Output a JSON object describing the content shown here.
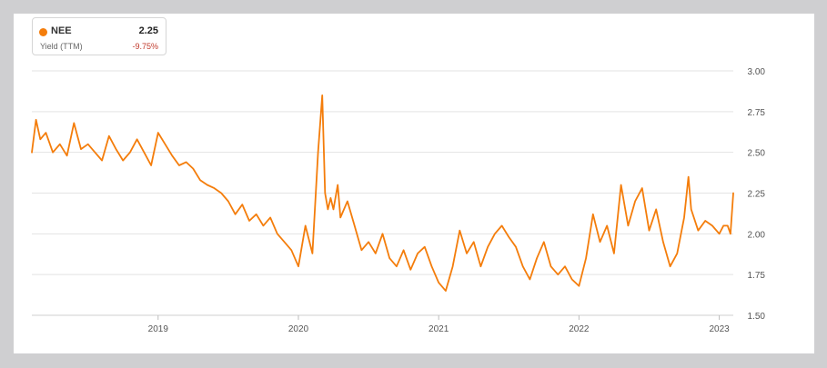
{
  "legend": {
    "ticker": "NEE",
    "value": "2.25",
    "metric": "Yield (TTM)",
    "change": "-9.75%"
  },
  "colors": {
    "series": "#f47d0b",
    "grid": "#e3e3e3",
    "negative": "#c0392b"
  },
  "chart_data": {
    "type": "line",
    "xlabel": "",
    "ylabel": "",
    "ylim": [
      1.5,
      3.0
    ],
    "xlim": [
      2018.1,
      2023.1
    ],
    "yticks": [
      "3.00",
      "2.75",
      "2.50",
      "2.25",
      "2.00",
      "1.75",
      "1.50"
    ],
    "xticks": [
      "2019",
      "2020",
      "2021",
      "2022",
      "2023"
    ],
    "grid": true,
    "legend_position": "top-left",
    "series": [
      {
        "name": "NEE",
        "x": [
          2018.1,
          2018.13,
          2018.16,
          2018.2,
          2018.25,
          2018.3,
          2018.35,
          2018.4,
          2018.45,
          2018.5,
          2018.55,
          2018.6,
          2018.65,
          2018.7,
          2018.75,
          2018.8,
          2018.85,
          2018.9,
          2018.95,
          2019.0,
          2019.05,
          2019.1,
          2019.15,
          2019.2,
          2019.25,
          2019.3,
          2019.35,
          2019.4,
          2019.45,
          2019.5,
          2019.55,
          2019.6,
          2019.65,
          2019.7,
          2019.75,
          2019.8,
          2019.85,
          2019.9,
          2019.95,
          2020.0,
          2020.05,
          2020.1,
          2020.14,
          2020.17,
          2020.19,
          2020.21,
          2020.23,
          2020.25,
          2020.28,
          2020.3,
          2020.35,
          2020.4,
          2020.45,
          2020.5,
          2020.55,
          2020.6,
          2020.65,
          2020.7,
          2020.75,
          2020.8,
          2020.85,
          2020.9,
          2020.95,
          2021.0,
          2021.05,
          2021.1,
          2021.15,
          2021.2,
          2021.25,
          2021.3,
          2021.35,
          2021.4,
          2021.45,
          2021.5,
          2021.55,
          2021.6,
          2021.65,
          2021.7,
          2021.75,
          2021.8,
          2021.85,
          2021.9,
          2021.95,
          2022.0,
          2022.05,
          2022.1,
          2022.15,
          2022.2,
          2022.25,
          2022.3,
          2022.35,
          2022.4,
          2022.45,
          2022.5,
          2022.55,
          2022.6,
          2022.65,
          2022.7,
          2022.75,
          2022.78,
          2022.8,
          2022.85,
          2022.9,
          2022.95,
          2023.0,
          2023.03,
          2023.06,
          2023.08,
          2023.1
        ],
        "values": [
          2.5,
          2.7,
          2.58,
          2.62,
          2.5,
          2.55,
          2.48,
          2.68,
          2.52,
          2.55,
          2.5,
          2.45,
          2.6,
          2.52,
          2.45,
          2.5,
          2.58,
          2.5,
          2.42,
          2.62,
          2.55,
          2.48,
          2.42,
          2.44,
          2.4,
          2.33,
          2.3,
          2.28,
          2.25,
          2.2,
          2.12,
          2.18,
          2.08,
          2.12,
          2.05,
          2.1,
          2.0,
          1.95,
          1.9,
          1.8,
          2.05,
          1.88,
          2.5,
          2.85,
          2.25,
          2.15,
          2.22,
          2.15,
          2.3,
          2.1,
          2.2,
          2.05,
          1.9,
          1.95,
          1.88,
          2.0,
          1.85,
          1.8,
          1.9,
          1.78,
          1.88,
          1.92,
          1.8,
          1.7,
          1.65,
          1.8,
          2.02,
          1.88,
          1.95,
          1.8,
          1.92,
          2.0,
          2.05,
          1.98,
          1.92,
          1.8,
          1.72,
          1.85,
          1.95,
          1.8,
          1.75,
          1.8,
          1.72,
          1.68,
          1.85,
          2.12,
          1.95,
          2.05,
          1.88,
          2.3,
          2.05,
          2.2,
          2.28,
          2.02,
          2.15,
          1.95,
          1.8,
          1.88,
          2.1,
          2.35,
          2.15,
          2.02,
          2.08,
          2.05,
          2.0,
          2.05,
          2.05,
          2.0,
          2.25
        ]
      }
    ]
  }
}
